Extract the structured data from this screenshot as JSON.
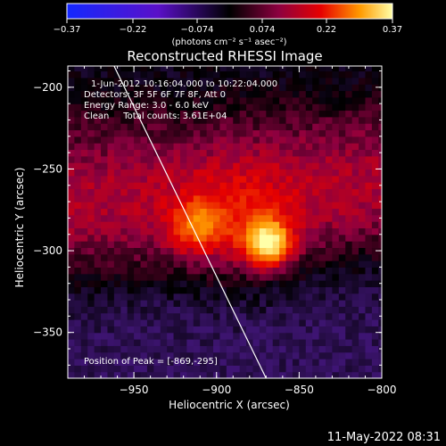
{
  "chart_data": {
    "type": "heatmap",
    "title": "Reconstructed RHESSI Image",
    "xlabel": "Heliocentric X (arcsec)",
    "ylabel": "Heliocentric Y (arcsec)",
    "xlim": [
      -990,
      -800
    ],
    "ylim": [
      -378,
      -187
    ],
    "x_ticks": [
      -950,
      -900,
      -850,
      -800
    ],
    "y_ticks": [
      -200,
      -250,
      -300,
      -350
    ],
    "x_tick_labels": [
      "−950",
      "−900",
      "−850",
      "−800"
    ],
    "y_tick_labels": [
      "−200",
      "−250",
      "−300",
      "−350"
    ],
    "colorbar": {
      "min": -0.37,
      "max": 0.37,
      "ticks": [
        -0.37,
        -0.22,
        -0.074,
        0.074,
        0.22,
        0.37
      ],
      "tick_labels": [
        "−0.37",
        "−0.22",
        "−0.074",
        "0.074",
        "0.22",
        "0.37"
      ],
      "unit_label": "(photons cm⁻² s⁻¹ asec⁻²)"
    },
    "sources": [
      {
        "x": -869,
        "y": -295,
        "peak": 0.37
      },
      {
        "x": -912,
        "y": -285,
        "peak": 0.21
      }
    ],
    "limb_line": {
      "x1": -962,
      "y1": -187,
      "x2": -870,
      "y2": -378
    },
    "info_lines": [
      "1-Jun-2012 10:16:04.000 to 10:22:04.000",
      "Detectors: 3F 5F 6F 7F 8F, Att 0",
      "Energy Range: 3.0 - 6.0 keV",
      "Clean     Total counts: 3.61E+04"
    ],
    "peak_text": "Position of Peak = [-869,-295]",
    "timestamp": "11-May-2022 08:31"
  }
}
